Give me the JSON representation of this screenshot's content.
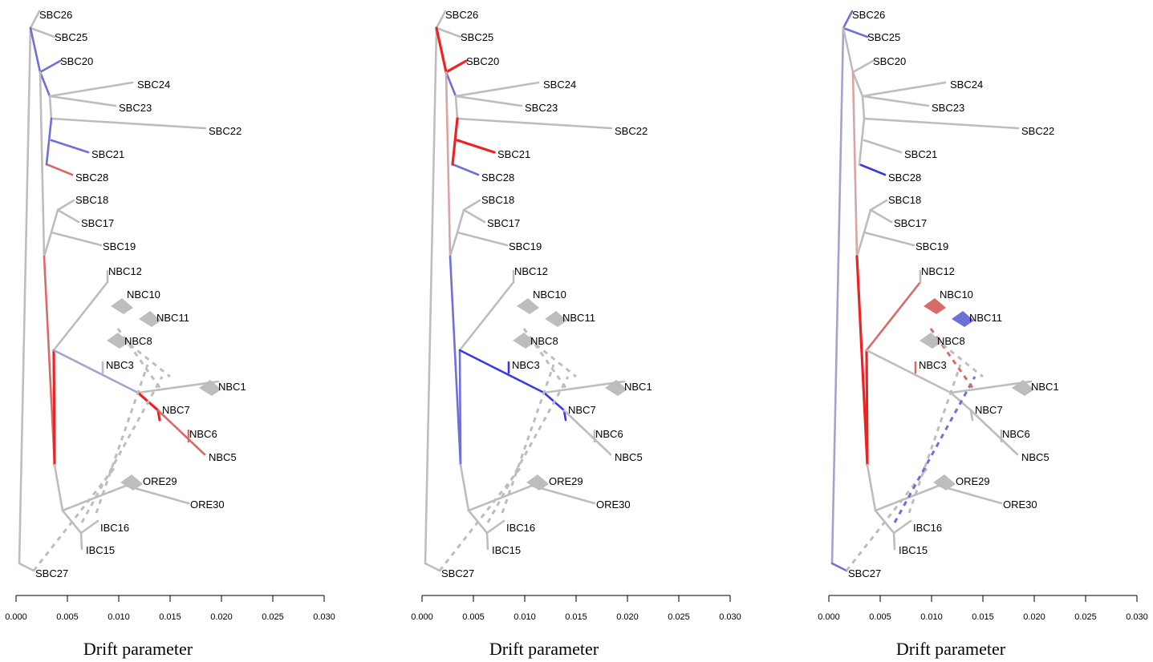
{
  "axis": {
    "ticks": [
      "0.000",
      "0.005",
      "0.010",
      "0.015",
      "0.020",
      "0.025",
      "0.030"
    ],
    "title": "Drift parameter"
  },
  "colors": {
    "neutral": "#bdbdbd",
    "red_strong": "#ee2222",
    "red_mid": "#d96a6a",
    "red_light": "#d9a4a4",
    "blue_strong": "#3a3ae0",
    "blue_mid": "#6f6fd8",
    "blue_light": "#a3a3cc"
  },
  "tips": [
    {
      "id": "SBC26",
      "label": "SBC26"
    },
    {
      "id": "SBC25",
      "label": "SBC25"
    },
    {
      "id": "SBC20",
      "label": "SBC20"
    },
    {
      "id": "SBC24",
      "label": "SBC24"
    },
    {
      "id": "SBC23",
      "label": "SBC23"
    },
    {
      "id": "SBC22",
      "label": "SBC22"
    },
    {
      "id": "SBC21",
      "label": "SBC21"
    },
    {
      "id": "SBC28",
      "label": "SBC28"
    },
    {
      "id": "SBC18",
      "label": "SBC18"
    },
    {
      "id": "SBC17",
      "label": "SBC17"
    },
    {
      "id": "SBC19",
      "label": "SBC19"
    },
    {
      "id": "NBC12",
      "label": "NBC12"
    },
    {
      "id": "NBC10",
      "label": "NBC10"
    },
    {
      "id": "NBC11",
      "label": "NBC11"
    },
    {
      "id": "NBC8",
      "label": "NBC8"
    },
    {
      "id": "NBC3",
      "label": "NBC3"
    },
    {
      "id": "NBC1",
      "label": "NBC1"
    },
    {
      "id": "NBC7",
      "label": "NBC7"
    },
    {
      "id": "NBC6",
      "label": "NBC6"
    },
    {
      "id": "NBC5",
      "label": "NBC5"
    },
    {
      "id": "ORE29",
      "label": "ORE29"
    },
    {
      "id": "ORE30",
      "label": "ORE30"
    },
    {
      "id": "IBC16",
      "label": "IBC16"
    },
    {
      "id": "IBC15",
      "label": "IBC15"
    },
    {
      "id": "SBC27",
      "label": "SBC27"
    }
  ],
  "panels": [
    {
      "highlight": "panel-1"
    },
    {
      "highlight": "panel-2"
    },
    {
      "highlight": "panel-3"
    }
  ]
}
